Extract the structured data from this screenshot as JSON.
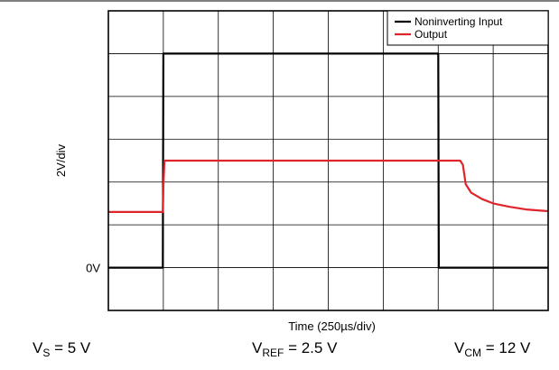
{
  "chart_data": {
    "type": "line",
    "xlabel": "Time (250µs/div)",
    "ylabel": "2V/div",
    "x_divisions": 8,
    "y_divisions": 7,
    "zero_label": "0V",
    "zero_level_div": 1,
    "x_range_div": [
      0,
      8
    ],
    "y_range_div": [
      0,
      7
    ],
    "grid": true,
    "legend_position": "top-right",
    "series": [
      {
        "name": "Noninverting Input",
        "color": "#000000",
        "x": [
          0,
          0.99,
          1.0,
          6.0,
          6.01,
          8.0
        ],
        "y": [
          0,
          0,
          5,
          5,
          0,
          0
        ]
      },
      {
        "name": "Output",
        "color": "#e0242b",
        "x": [
          0,
          0.99,
          1.0,
          1.02,
          6.4,
          6.45,
          6.5,
          6.6,
          6.8,
          7.0,
          7.3,
          7.6,
          8.0
        ],
        "y": [
          1.3,
          1.3,
          1.9,
          2.5,
          2.5,
          2.4,
          1.95,
          1.75,
          1.6,
          1.5,
          1.42,
          1.36,
          1.32
        ]
      }
    ]
  },
  "conditions": {
    "vs": {
      "sym": "V",
      "sub": "S",
      "rest": " = 5 V"
    },
    "vref": {
      "sym": "V",
      "sub": "REF",
      "rest": " = 2.5 V"
    },
    "vcm": {
      "sym": "V",
      "sub": "CM",
      "rest": " = 12 V"
    }
  }
}
